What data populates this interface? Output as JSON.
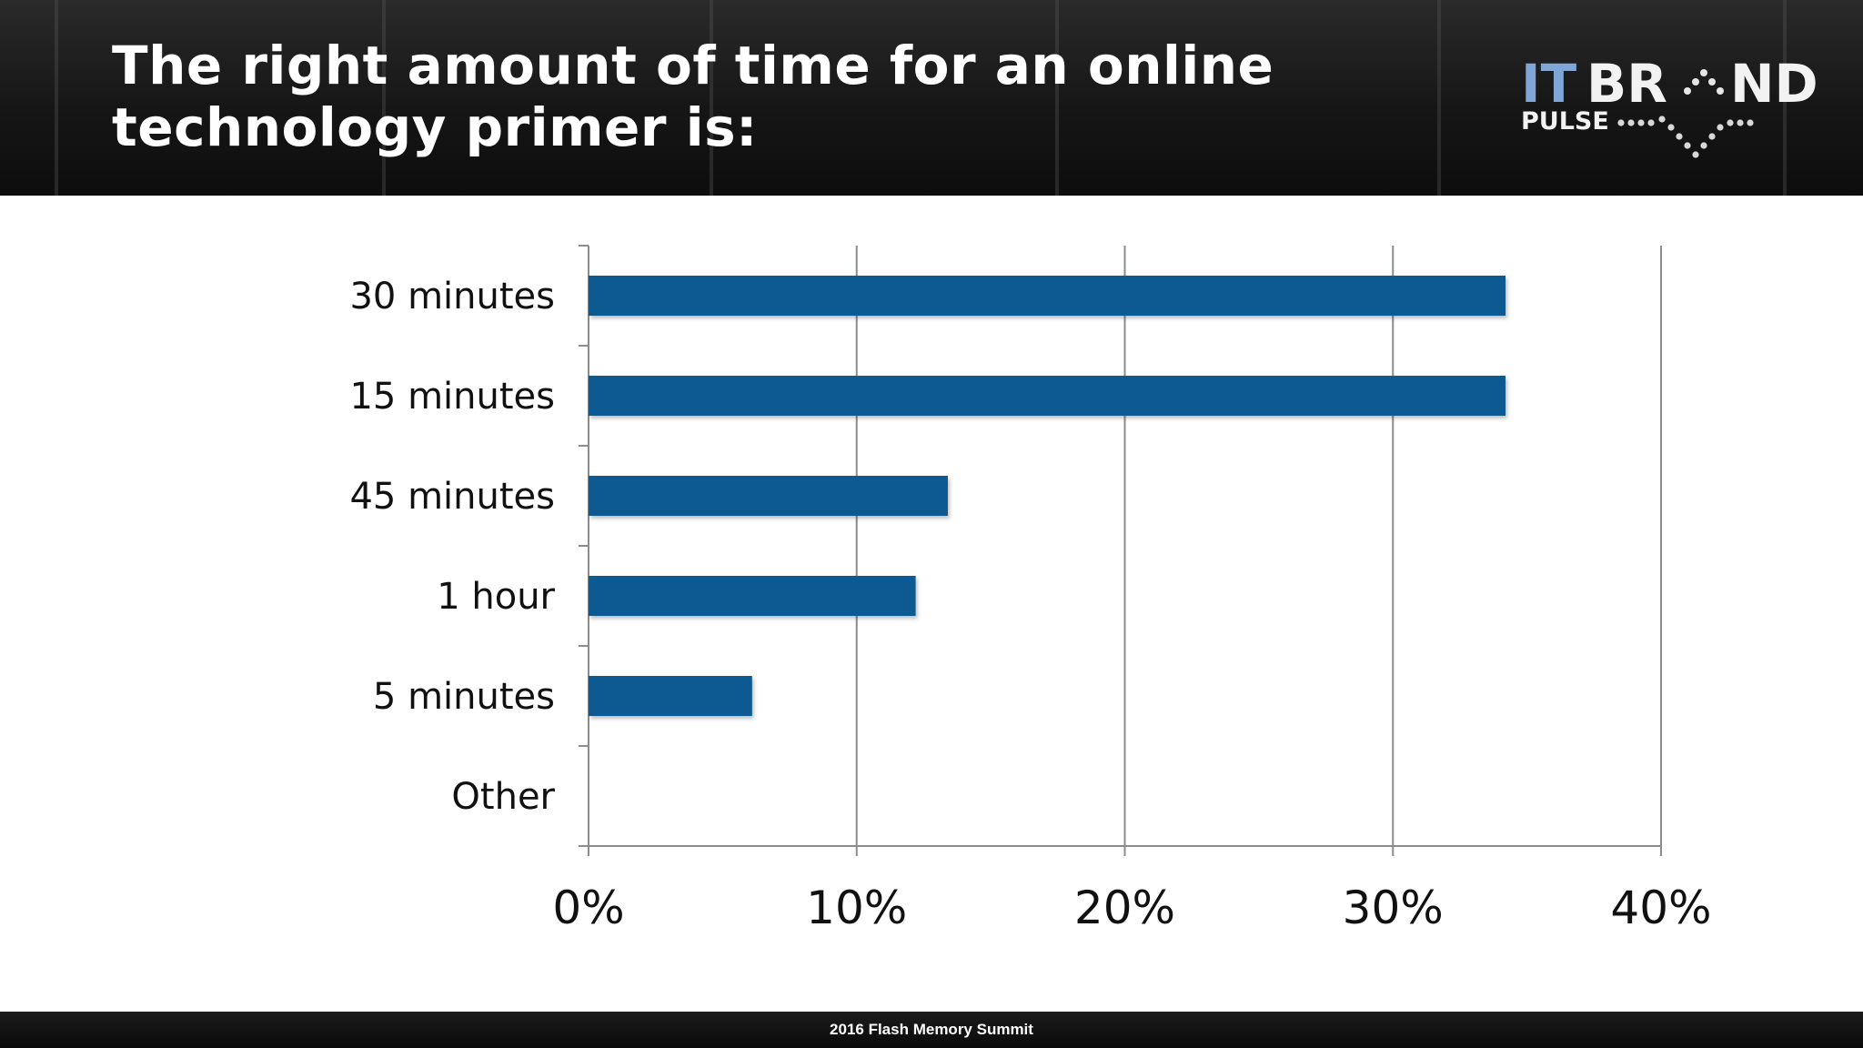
{
  "slide": {
    "title": "The right amount of time for an online technology primer is:",
    "footer": "2016 Flash Memory Summit",
    "logo_text": "IT BRAND PULSE"
  },
  "colors": {
    "bar": "#0a5a93",
    "header_bg": "#161616",
    "logo_accent": "#7fa6d6"
  },
  "chart_data": {
    "type": "bar",
    "orientation": "horizontal",
    "title": "",
    "xlabel": "",
    "ylabel": "",
    "categories": [
      "30 minutes",
      "15 minutes",
      "45 minutes",
      "1 hour",
      "5 minutes",
      "Other"
    ],
    "values": [
      34.2,
      34.2,
      13.4,
      12.2,
      6.1,
      0
    ],
    "unit": "%",
    "xlim": [
      0,
      40
    ],
    "xticks": [
      "0%",
      "10%",
      "20%",
      "30%",
      "40%"
    ],
    "grid": true,
    "legend": "none"
  }
}
